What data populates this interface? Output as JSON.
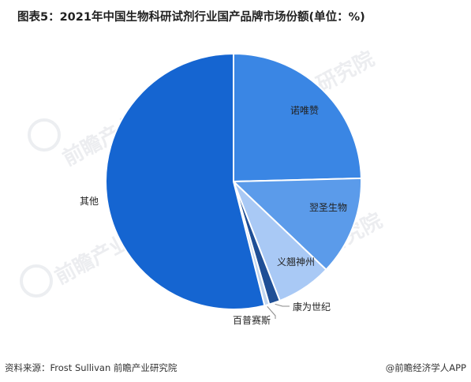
{
  "title": "图表5：2021年中国生物科研试剂行业国产品牌市场份额(单位：%)",
  "footer": {
    "source": "资料来源：Frost Sullivan 前瞻产业研究院",
    "brand": "@前瞻经济学人APP"
  },
  "watermark": "前瞻产业研究院",
  "chart_data": {
    "type": "pie",
    "title": "图表5：2021年中国生物科研试剂行业国产品牌市场份额(单位：%)",
    "unit": "%",
    "slices": [
      {
        "label": "诺唯赞",
        "value": 24.6,
        "color": "#3a86e4"
      },
      {
        "label": "翌圣生物",
        "value": 12.5,
        "color": "#5b9bea"
      },
      {
        "label": "义翘神州",
        "value": 7.0,
        "color": "#a9c9f5"
      },
      {
        "label": "康为世纪",
        "value": 1.4,
        "color": "#1f4f96"
      },
      {
        "label": "百普赛斯",
        "value": 0.6,
        "color": "#c2d6ef"
      },
      {
        "label": "其他",
        "value": 53.9,
        "color": "#1565d1"
      }
    ],
    "legend": "none"
  }
}
